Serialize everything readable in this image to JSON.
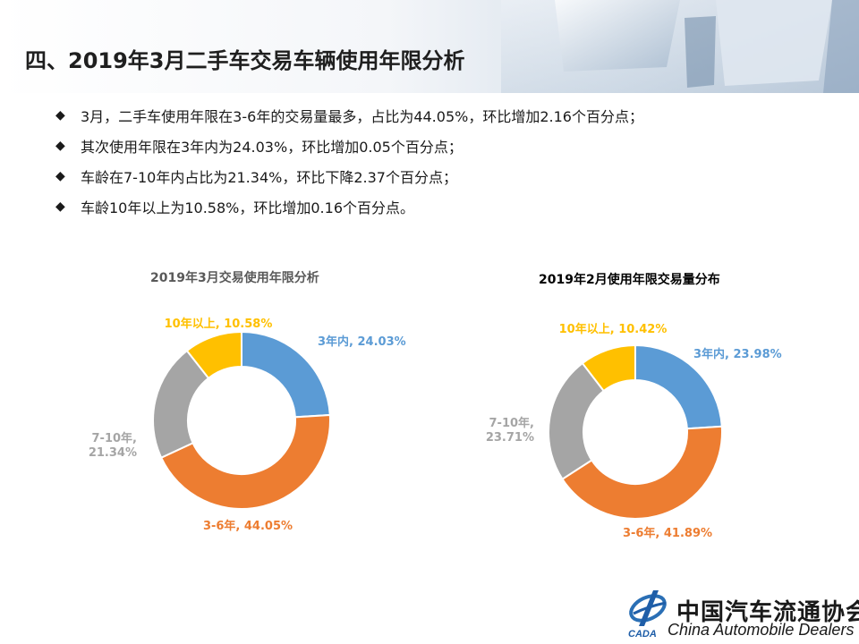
{
  "page": {
    "title": "四、2019年3月二手车交易车辆使用年限分析",
    "bullets": [
      "3月，二手车使用年限在3-6年的交易量最多，占比为44.05%，环比增加2.16个百分点；",
      "其次使用年限在3年内为24.03%，环比增加0.05个百分点；",
      "车龄在7-10年内占比为21.34%，环比下降2.37个百分点；",
      "车龄10年以上为10.58%，环比增加0.16个百分点。"
    ],
    "bullet_icon": "diamond-bullet-icon"
  },
  "footer": {
    "org_cn": "中国汽车流通协会",
    "org_en": "China Automobile Dealers",
    "logo_icon": "cada-logo-icon",
    "logo_text": "CADA"
  },
  "colors": {
    "blue": "#5b9bd5",
    "orange": "#ed7d31",
    "gray": "#a5a5a5",
    "yellow": "#ffc000"
  },
  "chart_data": [
    {
      "type": "pie",
      "title": "2019年3月交易使用年限分析",
      "slices": [
        {
          "label": "3年内, 24.03%",
          "value": 24.03,
          "color": "#5b9bd5"
        },
        {
          "label": "3-6年, 44.05%",
          "value": 44.05,
          "color": "#ed7d31"
        },
        {
          "label": "7-10年,\n21.34%",
          "value": 21.34,
          "color": "#a5a5a5"
        },
        {
          "label": "10年以上, 10.58%",
          "value": 10.58,
          "color": "#ffc000"
        }
      ]
    },
    {
      "type": "pie",
      "title": "2019年2月使用年限交易量分布",
      "slices": [
        {
          "label": "3年内, 23.98%",
          "value": 23.98,
          "color": "#5b9bd5"
        },
        {
          "label": "3-6年, 41.89%",
          "value": 41.89,
          "color": "#ed7d31"
        },
        {
          "label": "7-10年,\n23.71%",
          "value": 23.71,
          "color": "#a5a5a5"
        },
        {
          "label": "10年以上, 10.42%",
          "value": 10.42,
          "color": "#ffc000"
        }
      ]
    }
  ]
}
